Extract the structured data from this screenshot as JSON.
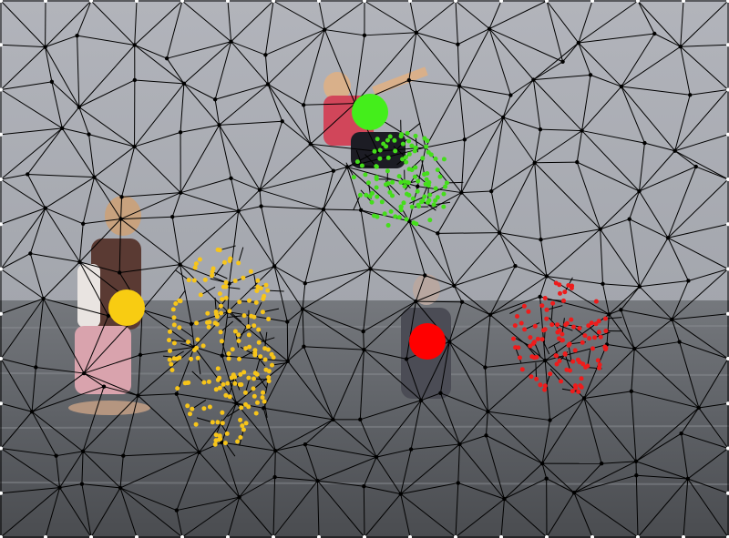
{
  "image": {
    "description_free": true,
    "colors": {
      "sky": "#a9abb2",
      "sea_dark": "#4d4f53",
      "sea_mid": "#6b6e73",
      "mesh_line": "#000000",
      "mesh_point": "#000000",
      "border_point": "#ffffff"
    }
  },
  "markers": [
    {
      "name": "green-cluster",
      "color": "#44dd1b",
      "centroid_color": "#44ee1b"
    },
    {
      "name": "yellow-cluster",
      "color": "#f7c51a",
      "centroid_color": "#f8cc12"
    },
    {
      "name": "red-cluster",
      "color": "#ee1c1c",
      "centroid_color": "#ff0000"
    }
  ]
}
